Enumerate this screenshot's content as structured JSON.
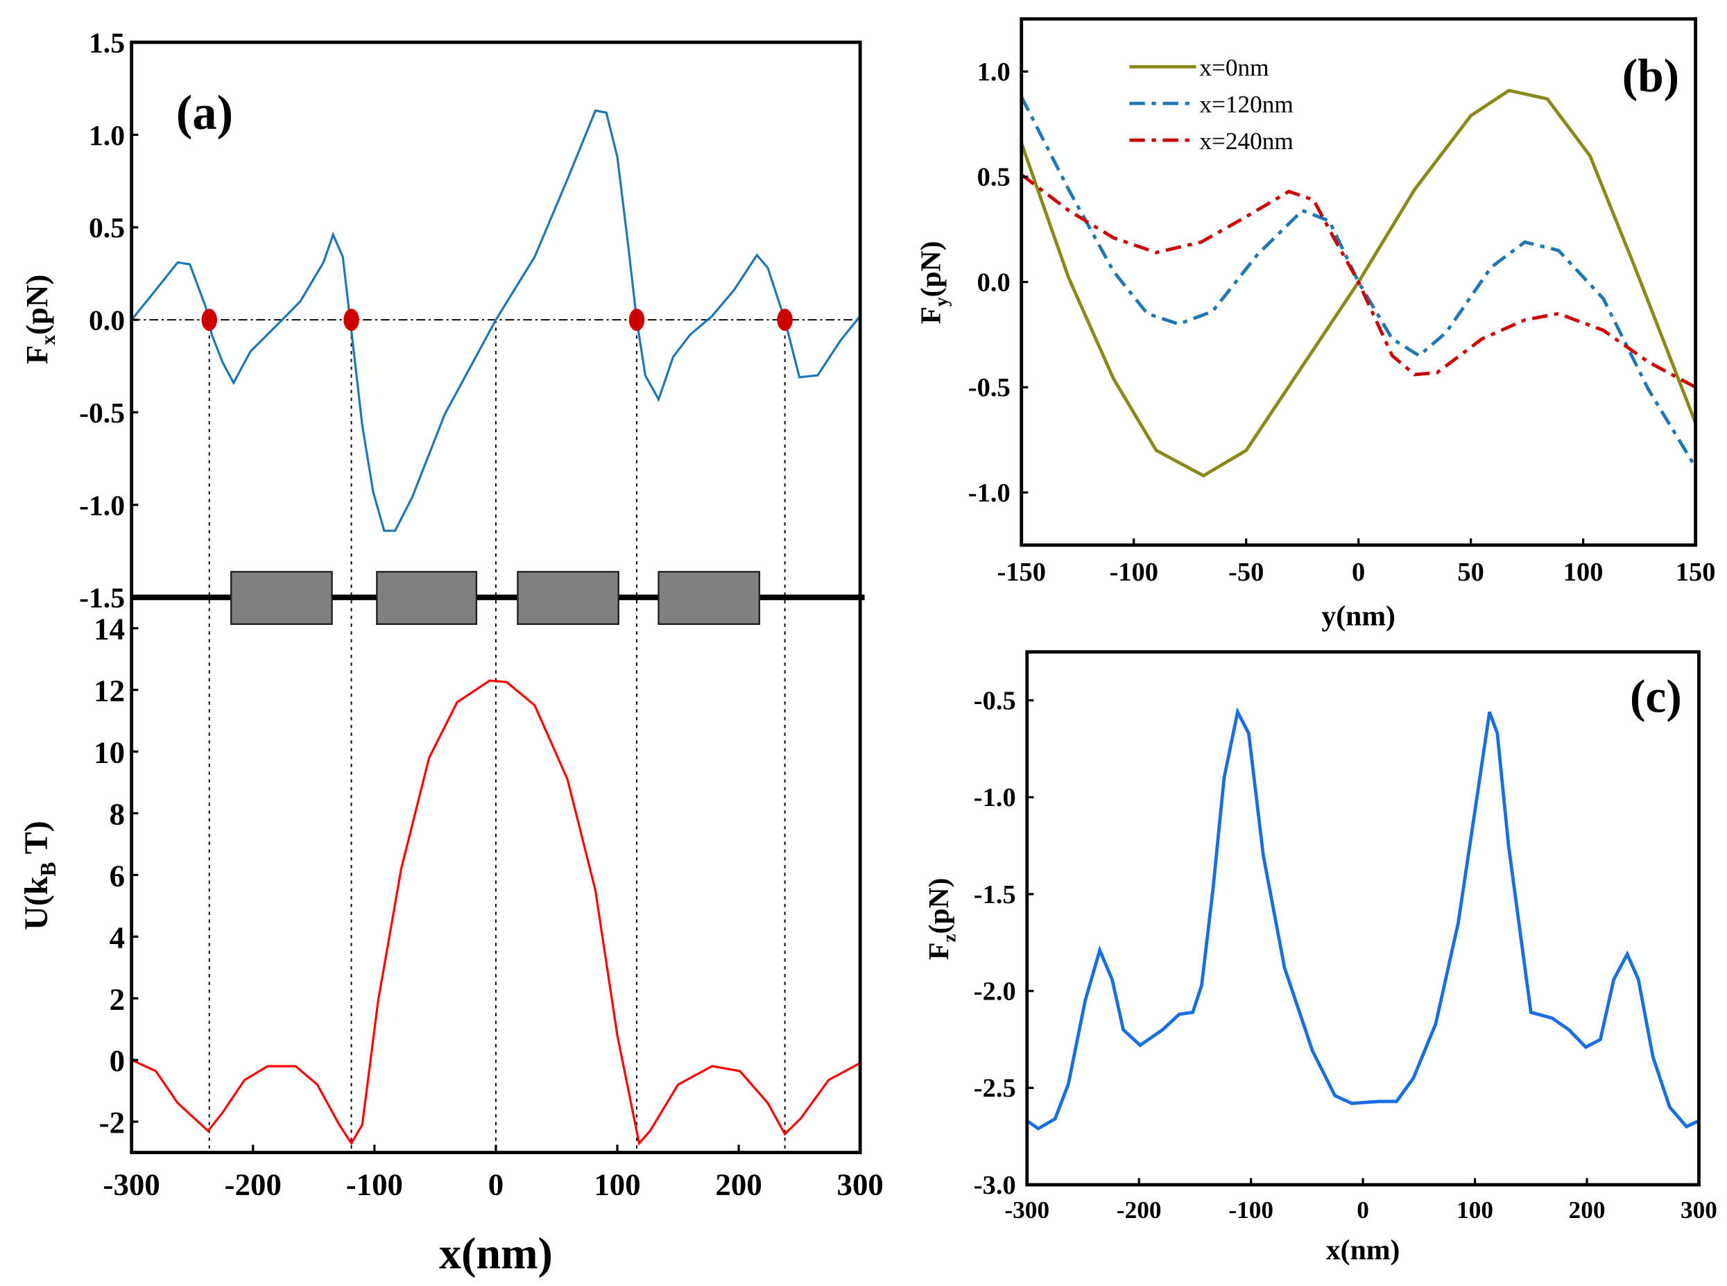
{
  "chart_data": [
    {
      "panel_label": "(a)",
      "type": "line",
      "subplots": [
        {
          "name": "force-x",
          "ylabel": [
            "F",
            "x",
            "(pN)"
          ],
          "ylim": [
            -1.5,
            1.5
          ],
          "yticks": [
            "1.5",
            "1.0",
            "0.5",
            "0.0",
            "-0.5",
            "-1.0",
            "-1.5"
          ],
          "ytick_values": [
            1.5,
            1.0,
            0.5,
            0.0,
            -0.5,
            -1.0,
            -1.5
          ],
          "color": "#1f77b4",
          "x": [
            -300,
            -284,
            -262,
            -252,
            -239,
            -234,
            -225,
            -216,
            -202,
            -179,
            -161,
            -142,
            -134,
            -126,
            -120,
            -110,
            -101,
            -92,
            -83,
            -69,
            -42,
            0,
            32,
            59,
            82,
            91,
            100,
            109,
            116,
            123,
            134,
            146,
            160,
            178,
            196,
            215,
            224,
            238,
            250,
            265,
            284,
            300
          ],
          "y": [
            0,
            0.13,
            0.31,
            0.3,
            0.07,
            -0.08,
            -0.23,
            -0.34,
            -0.17,
            -0.02,
            0.1,
            0.31,
            0.46,
            0.34,
            0,
            -0.57,
            -0.93,
            -1.14,
            -1.14,
            -0.96,
            -0.51,
            0,
            0.34,
            0.76,
            1.13,
            1.12,
            0.88,
            0.4,
            0,
            -0.3,
            -0.43,
            -0.2,
            -0.08,
            0.02,
            0.16,
            0.35,
            0.28,
            0,
            -0.31,
            -0.3,
            -0.11,
            0.02
          ],
          "zero_crossings_marked": [
            -236,
            -119,
            116,
            238
          ],
          "marker_color": "#cc0000",
          "guide_lines_x": [
            -236,
            -119,
            0,
            116,
            238
          ]
        },
        {
          "name": "potential",
          "ylabel": [
            "U(k",
            "B",
            " T)"
          ],
          "ylim": [
            -3,
            15
          ],
          "yticks": [
            "14",
            "12",
            "10",
            "8",
            "6",
            "4",
            "2",
            "0",
            "-2"
          ],
          "ytick_values": [
            14,
            12,
            10,
            8,
            6,
            4,
            2,
            0,
            -2
          ],
          "color": "#ff0000",
          "x": [
            -300,
            -280,
            -262,
            -237,
            -225,
            -207,
            -188,
            -165,
            -147,
            -129,
            -119,
            -110,
            -97,
            -78,
            -55,
            -32,
            -5,
            9,
            32,
            59,
            82,
            100,
            118,
            127,
            150,
            178,
            201,
            224,
            238,
            251,
            274,
            300
          ],
          "y": [
            0,
            -0.36,
            -1.4,
            -2.3,
            -1.7,
            -0.65,
            -0.2,
            -0.2,
            -0.8,
            -2.1,
            -2.7,
            -2.1,
            1.9,
            6.2,
            9.8,
            11.6,
            12.3,
            12.25,
            11.5,
            9.1,
            5.5,
            0.8,
            -2.7,
            -2.3,
            -0.8,
            -0.2,
            -0.36,
            -1.4,
            -2.4,
            -1.9,
            -0.65,
            -0.1
          ]
        }
      ],
      "blocks_x": [
        [
          -218,
          -135
        ],
        [
          -98,
          -16
        ],
        [
          18,
          101
        ],
        [
          134,
          217
        ]
      ],
      "block_color": "#808080",
      "xlabel": "x(nm)",
      "xlim": [
        -300,
        300
      ],
      "xticks": [
        "-300",
        "-200",
        "-100",
        "0",
        "100",
        "200",
        "300"
      ],
      "xtick_values": [
        -300,
        -200,
        -100,
        0,
        100,
        200,
        300
      ]
    },
    {
      "panel_label": "(b)",
      "type": "line",
      "xlabel": "y(nm)",
      "ylabel": [
        "F",
        "y",
        "(pN)"
      ],
      "xlim": [
        -150,
        150
      ],
      "ylim": [
        -1.25,
        1.25
      ],
      "xticks": [
        "-150",
        "-100",
        "-50",
        "0",
        "50",
        "100",
        "150"
      ],
      "xtick_values": [
        -150,
        -100,
        -50,
        0,
        50,
        100,
        150
      ],
      "yticks": [
        "1.0",
        "0.5",
        "0.0",
        "-0.5",
        "-1.0"
      ],
      "ytick_values": [
        1.0,
        0.5,
        0.0,
        -0.5,
        -1.0
      ],
      "legend_position": "top-left",
      "series": [
        {
          "name": "x=0nm",
          "color": "#8a8a1a",
          "style": "solid",
          "x": [
            -150,
            -129,
            -109,
            -90,
            -69,
            -50,
            -25,
            0,
            25,
            50,
            67,
            84,
            103,
            123,
            150
          ],
          "y": [
            0.66,
            0.02,
            -0.46,
            -0.8,
            -0.92,
            -0.8,
            -0.4,
            0,
            0.44,
            0.79,
            0.91,
            0.87,
            0.6,
            0.07,
            -0.67
          ]
        },
        {
          "name": "x=120nm",
          "color": "#1f77b4",
          "style": "dashdot",
          "x": [
            -150,
            -129,
            -109,
            -94,
            -80,
            -65,
            -45,
            -25,
            -13,
            0,
            15,
            27,
            39,
            59,
            74,
            89,
            109,
            129,
            150
          ],
          "y": [
            0.88,
            0.44,
            0.05,
            -0.15,
            -0.2,
            -0.14,
            0.13,
            0.34,
            0.29,
            0,
            -0.27,
            -0.35,
            -0.24,
            0.07,
            0.19,
            0.15,
            -0.08,
            -0.51,
            -0.88
          ]
        },
        {
          "name": "x=240nm",
          "color": "#cc0000",
          "style": "dashdot",
          "x": [
            -150,
            -129,
            -109,
            -90,
            -70,
            -50,
            -31,
            -20,
            -11,
            0,
            15,
            25,
            35,
            55,
            74,
            89,
            109,
            129,
            150
          ],
          "y": [
            0.51,
            0.34,
            0.21,
            0.14,
            0.19,
            0.31,
            0.43,
            0.39,
            0.21,
            0,
            -0.35,
            -0.44,
            -0.43,
            -0.27,
            -0.18,
            -0.15,
            -0.23,
            -0.38,
            -0.5
          ]
        }
      ]
    },
    {
      "panel_label": "(c)",
      "type": "line",
      "xlabel": "x(nm)",
      "ylabel": [
        "F",
        "z",
        "(pN)"
      ],
      "xlim": [
        -300,
        300
      ],
      "ylim": [
        -3.0,
        -0.25
      ],
      "xticks": [
        "-300",
        "-200",
        "-100",
        "0",
        "100",
        "200",
        "300"
      ],
      "xtick_values": [
        -300,
        -200,
        -100,
        0,
        100,
        200,
        300
      ],
      "yticks": [
        "-0.5",
        "-1.0",
        "-1.5",
        "-2.0",
        "-2.5",
        "-3.0"
      ],
      "ytick_values": [
        -0.5,
        -1.0,
        -1.5,
        -2.0,
        -2.5,
        -3.0
      ],
      "series": [
        {
          "name": "Fz",
          "color": "#1a6fe0",
          "style": "solid",
          "x": [
            -300,
            -290,
            -275,
            -263,
            -248,
            -235,
            -224,
            -214,
            -199,
            -179,
            -164,
            -152,
            -144,
            -134,
            -124,
            -112,
            -102,
            -89,
            -70,
            -45,
            -25,
            -10,
            15,
            30,
            45,
            65,
            85,
            100,
            113,
            120,
            130,
            150,
            169,
            184,
            199,
            212,
            224,
            236,
            246,
            259,
            274,
            289,
            300
          ],
          "y": [
            -2.67,
            -2.71,
            -2.66,
            -2.48,
            -2.05,
            -1.79,
            -1.94,
            -2.2,
            -2.28,
            -2.2,
            -2.12,
            -2.11,
            -1.97,
            -1.48,
            -0.9,
            -0.56,
            -0.67,
            -1.3,
            -1.88,
            -2.31,
            -2.54,
            -2.58,
            -2.57,
            -2.57,
            -2.45,
            -2.17,
            -1.65,
            -1.07,
            -0.56,
            -0.67,
            -1.25,
            -2.11,
            -2.14,
            -2.2,
            -2.29,
            -2.25,
            -1.94,
            -1.81,
            -1.94,
            -2.34,
            -2.6,
            -2.7,
            -2.67
          ]
        }
      ]
    }
  ]
}
